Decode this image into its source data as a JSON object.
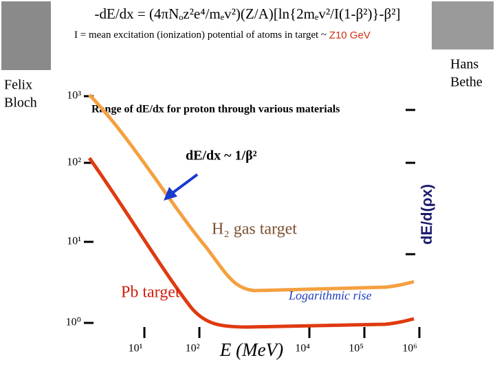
{
  "slide": {
    "formula": "-dE/dx = (4πNₒz²e⁴/mₑv²)(Z/A)[ln{2mₑv²/I(1-β²)}-β²]",
    "definition": {
      "text": "I = mean excitation (ionization) potential of atoms in target ~ ",
      "highlight": "Z10 GeV"
    },
    "people": {
      "left": [
        "Felix",
        "Bloch"
      ],
      "right": [
        "Hans",
        "Bethe"
      ]
    },
    "plot": {
      "title": "Range of dE/dx for proton through various materials",
      "y_ticks": [
        "10³",
        "10²",
        "10¹",
        "10⁰"
      ],
      "x_ticks": [
        "10¹",
        "10²",
        "10⁴",
        "10⁵",
        "10⁶"
      ],
      "x_label": "E (MeV)",
      "y_label": "dE/d(ρx)",
      "annotations": {
        "slope": "dE/dx ~ 1/β²",
        "gas": "H₂ gas target",
        "lead": "Pb target",
        "rise": "Logarithmic rise"
      }
    }
  }
}
